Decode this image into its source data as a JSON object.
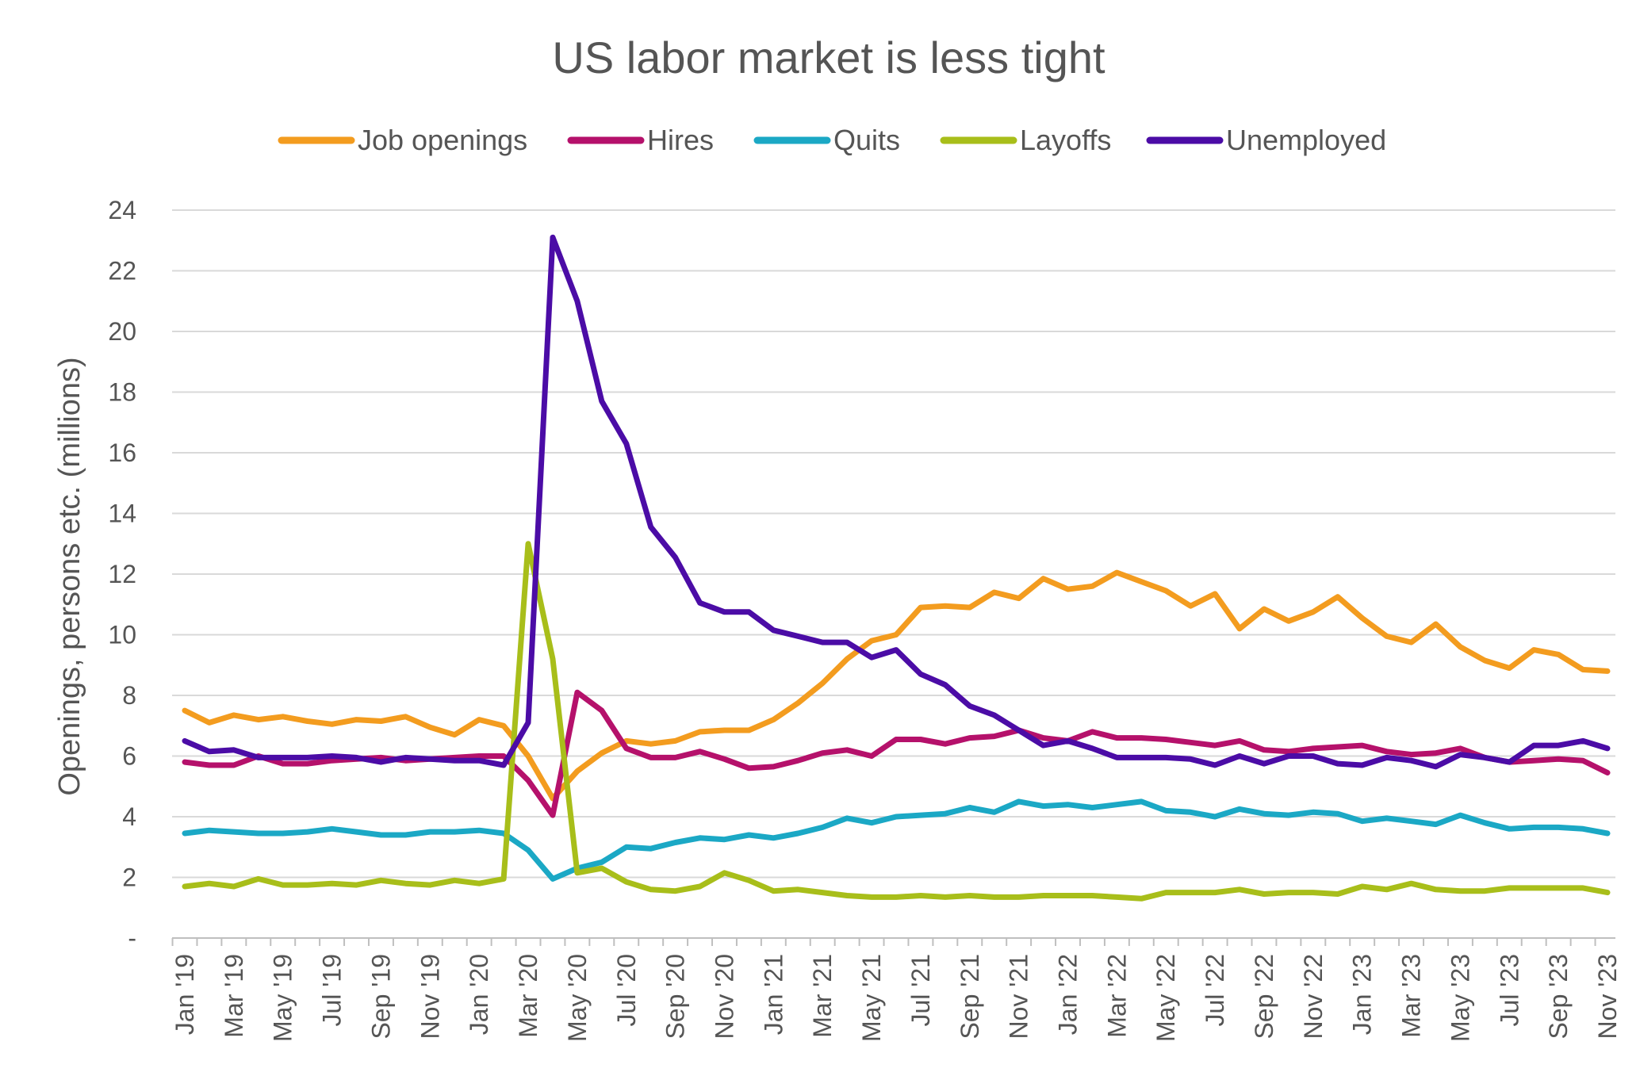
{
  "chart_data": {
    "type": "line",
    "title": "US labor market is less tight",
    "ylabel": "Openings, persons etc. (millions)",
    "xlabel": "",
    "ylim": [
      0,
      24
    ],
    "yticks": [
      {
        "value": 0,
        "label": "-"
      },
      {
        "value": 2,
        "label": "2"
      },
      {
        "value": 4,
        "label": "4"
      },
      {
        "value": 6,
        "label": "6"
      },
      {
        "value": 8,
        "label": "8"
      },
      {
        "value": 10,
        "label": "10"
      },
      {
        "value": 12,
        "label": "12"
      },
      {
        "value": 14,
        "label": "14"
      },
      {
        "value": 16,
        "label": "16"
      },
      {
        "value": 18,
        "label": "18"
      },
      {
        "value": 20,
        "label": "20"
      },
      {
        "value": 22,
        "label": "22"
      },
      {
        "value": 24,
        "label": "24"
      }
    ],
    "grid": true,
    "legend_position": "top",
    "categories": [
      "Jan '19",
      "Feb '19",
      "Mar '19",
      "Apr '19",
      "May '19",
      "Jun '19",
      "Jul '19",
      "Aug '19",
      "Sep '19",
      "Oct '19",
      "Nov '19",
      "Dec '19",
      "Jan '20",
      "Feb '20",
      "Mar '20",
      "Apr '20",
      "May '20",
      "Jun '20",
      "Jul '20",
      "Aug '20",
      "Sep '20",
      "Oct '20",
      "Nov '20",
      "Dec '20",
      "Jan '21",
      "Feb '21",
      "Mar '21",
      "Apr '21",
      "May '21",
      "Jun '21",
      "Jul '21",
      "Aug '21",
      "Sep '21",
      "Oct '21",
      "Nov '21",
      "Dec '21",
      "Jan '22",
      "Feb '22",
      "Mar '22",
      "Apr '22",
      "May '22",
      "Jun '22",
      "Jul '22",
      "Aug '22",
      "Sep '22",
      "Oct '22",
      "Nov '22",
      "Dec '22",
      "Jan '23",
      "Feb '23",
      "Mar '23",
      "Apr '23",
      "May '23",
      "Jun '23",
      "Jul '23",
      "Aug '23",
      "Sep '23",
      "Oct '23",
      "Nov '23"
    ],
    "tick_labels": [
      "Jan '19",
      "Mar '19",
      "May '19",
      "Jul '19",
      "Sep '19",
      "Nov '19",
      "Jan '20",
      "Mar '20",
      "May '20",
      "Jul '20",
      "Sep '20",
      "Nov '20",
      "Jan '21",
      "Mar '21",
      "May '21",
      "Jul '21",
      "Sep '21",
      "Nov '21",
      "Jan '22",
      "Mar '22",
      "May '22",
      "Jul '22",
      "Sep '22",
      "Nov '22",
      "Jan '23",
      "Mar '23",
      "May '23",
      "Jul '23",
      "Sep '23",
      "Nov '23"
    ],
    "series": [
      {
        "name": "Job openings",
        "color": "#F39C1F",
        "values": [
          7.5,
          7.1,
          7.35,
          7.2,
          7.3,
          7.15,
          7.05,
          7.2,
          7.15,
          7.3,
          6.95,
          6.7,
          7.2,
          7.0,
          6.0,
          4.6,
          5.5,
          6.1,
          6.5,
          6.4,
          6.5,
          6.8,
          6.85,
          6.85,
          7.2,
          7.75,
          8.4,
          9.2,
          9.8,
          10.0,
          10.9,
          10.95,
          10.9,
          11.4,
          11.2,
          11.85,
          11.5,
          11.6,
          12.05,
          11.75,
          11.45,
          10.95,
          11.35,
          10.2,
          10.85,
          10.45,
          10.75,
          11.25,
          10.55,
          9.95,
          9.75,
          10.35,
          9.6,
          9.15,
          8.9,
          9.5,
          9.35,
          8.85,
          8.8
        ]
      },
      {
        "name": "Hires",
        "color": "#B5116B",
        "values": [
          5.8,
          5.7,
          5.7,
          6.0,
          5.75,
          5.75,
          5.85,
          5.9,
          5.95,
          5.85,
          5.9,
          5.95,
          6.0,
          6.0,
          5.2,
          4.05,
          8.1,
          7.5,
          6.25,
          5.95,
          5.95,
          6.15,
          5.9,
          5.6,
          5.65,
          5.85,
          6.1,
          6.2,
          6.0,
          6.55,
          6.55,
          6.4,
          6.6,
          6.65,
          6.85,
          6.6,
          6.5,
          6.8,
          6.6,
          6.6,
          6.55,
          6.45,
          6.35,
          6.5,
          6.2,
          6.15,
          6.25,
          6.3,
          6.35,
          6.15,
          6.05,
          6.1,
          6.25,
          5.95,
          5.8,
          5.85,
          5.9,
          5.85,
          5.45
        ]
      },
      {
        "name": "Quits",
        "color": "#1BA8C5",
        "values": [
          3.45,
          3.55,
          3.5,
          3.45,
          3.45,
          3.5,
          3.6,
          3.5,
          3.4,
          3.4,
          3.5,
          3.5,
          3.55,
          3.45,
          2.9,
          1.95,
          2.3,
          2.5,
          3.0,
          2.95,
          3.15,
          3.3,
          3.25,
          3.4,
          3.3,
          3.45,
          3.65,
          3.95,
          3.8,
          4.0,
          4.05,
          4.1,
          4.3,
          4.15,
          4.5,
          4.35,
          4.4,
          4.3,
          4.4,
          4.5,
          4.2,
          4.15,
          4.0,
          4.25,
          4.1,
          4.05,
          4.15,
          4.1,
          3.85,
          3.95,
          3.85,
          3.75,
          4.05,
          3.8,
          3.6,
          3.65,
          3.65,
          3.6,
          3.45
        ]
      },
      {
        "name": "Layoffs",
        "color": "#A8BE1A",
        "values": [
          1.7,
          1.8,
          1.7,
          1.95,
          1.75,
          1.75,
          1.8,
          1.75,
          1.9,
          1.8,
          1.75,
          1.9,
          1.8,
          1.95,
          13.0,
          9.2,
          2.15,
          2.3,
          1.85,
          1.6,
          1.55,
          1.7,
          2.15,
          1.9,
          1.55,
          1.6,
          1.5,
          1.4,
          1.35,
          1.35,
          1.4,
          1.35,
          1.4,
          1.35,
          1.35,
          1.4,
          1.4,
          1.4,
          1.35,
          1.3,
          1.5,
          1.5,
          1.5,
          1.6,
          1.45,
          1.5,
          1.5,
          1.45,
          1.7,
          1.6,
          1.8,
          1.6,
          1.55,
          1.55,
          1.65,
          1.65,
          1.65,
          1.65,
          1.5
        ]
      },
      {
        "name": "Unemployed",
        "color": "#4B0CA6",
        "values": [
          6.5,
          6.15,
          6.2,
          5.95,
          5.95,
          5.95,
          6.0,
          5.95,
          5.8,
          5.95,
          5.9,
          5.85,
          5.85,
          5.7,
          7.1,
          23.1,
          21.0,
          17.7,
          16.3,
          13.55,
          12.55,
          11.05,
          10.75,
          10.75,
          10.15,
          9.95,
          9.75,
          9.75,
          9.25,
          9.5,
          8.7,
          8.35,
          7.65,
          7.35,
          6.85,
          6.35,
          6.5,
          6.25,
          5.95,
          5.95,
          5.95,
          5.9,
          5.7,
          6.0,
          5.75,
          6.0,
          6.0,
          5.75,
          5.7,
          5.95,
          5.85,
          5.65,
          6.05,
          5.95,
          5.8,
          6.35,
          6.35,
          6.5,
          6.25
        ]
      }
    ]
  }
}
